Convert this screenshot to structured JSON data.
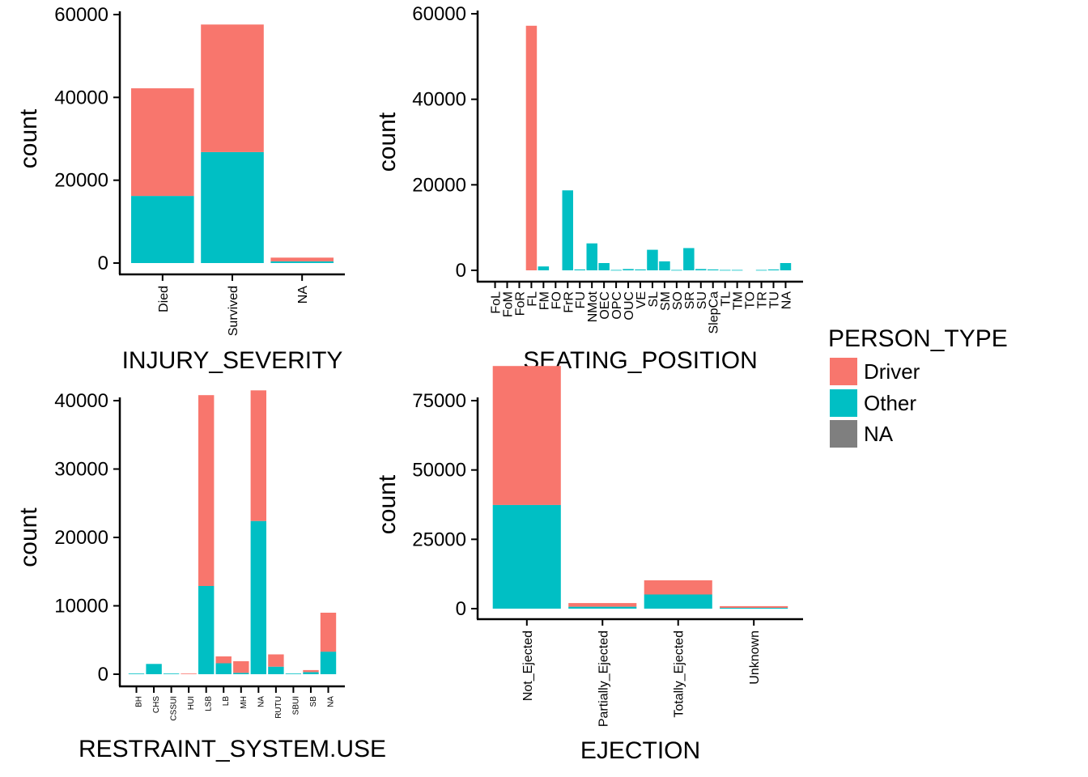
{
  "colors": {
    "Driver": "#F8766D",
    "Other": "#00BFC4",
    "NA": "#7F7F7F"
  },
  "legend": {
    "title": "PERSON_TYPE",
    "entries": [
      {
        "key": "Driver",
        "label": "Driver"
      },
      {
        "key": "Other",
        "label": "Other"
      },
      {
        "key": "NA",
        "label": "NA"
      }
    ]
  },
  "chart_data": [
    {
      "id": "injury",
      "type": "bar",
      "stacked": true,
      "xlabel": "INJURY_SEVERITY",
      "ylabel": "count",
      "ylim": [
        0,
        60000
      ],
      "yticks": [
        0,
        20000,
        40000,
        60000
      ],
      "categories": [
        "Died",
        "Survived",
        "NA"
      ],
      "series": [
        {
          "name": "Other",
          "values": [
            16200,
            26800,
            400
          ]
        },
        {
          "name": "Driver",
          "values": [
            26000,
            30800,
            900
          ]
        }
      ]
    },
    {
      "id": "seating",
      "type": "bar",
      "stacked": true,
      "xlabel": "SEATING_POSITION",
      "ylabel": "count",
      "ylim": [
        0,
        60000
      ],
      "yticks": [
        0,
        20000,
        40000,
        60000
      ],
      "categories": [
        "FoL",
        "FoM",
        "FoR",
        "FL",
        "FM",
        "FO",
        "FrR",
        "FU",
        "NMot",
        "OEC",
        "OPC",
        "OUC",
        "VE",
        "SL",
        "SM",
        "SO",
        "SR",
        "SU",
        "SlepCa",
        "TL",
        "TM",
        "TO",
        "TR",
        "TU",
        "NA"
      ],
      "series": [
        {
          "name": "Other",
          "values": [
            0,
            0,
            0,
            0,
            900,
            0,
            18700,
            200,
            6300,
            1700,
            100,
            300,
            200,
            4800,
            2100,
            100,
            5200,
            300,
            200,
            100,
            100,
            0,
            100,
            200,
            1700
          ]
        },
        {
          "name": "Driver",
          "values": [
            0,
            0,
            0,
            57200,
            0,
            0,
            0,
            0,
            0,
            0,
            0,
            0,
            0,
            0,
            0,
            0,
            0,
            0,
            0,
            0,
            0,
            0,
            0,
            0,
            0
          ]
        }
      ]
    },
    {
      "id": "restraint",
      "type": "bar",
      "stacked": true,
      "xlabel": "RESTRAINT_SYSTEM.USE",
      "ylabel": "count",
      "ylim": [
        0,
        42000
      ],
      "yticks": [
        0,
        10000,
        20000,
        30000,
        40000
      ],
      "categories": [
        "BH",
        "CHS",
        "CSSUI",
        "HUI",
        "LSB",
        "LB",
        "MH",
        "NA",
        "RUTU",
        "SBUI",
        "SB",
        "NA"
      ],
      "series": [
        {
          "name": "Other",
          "values": [
            100,
            1500,
            100,
            0,
            12900,
            1600,
            200,
            22400,
            1100,
            100,
            300,
            3300
          ]
        },
        {
          "name": "Driver",
          "values": [
            0,
            0,
            0,
            100,
            27900,
            1000,
            1700,
            19100,
            1800,
            0,
            300,
            5700
          ]
        }
      ]
    },
    {
      "id": "ejection",
      "type": "bar",
      "stacked": true,
      "xlabel": "EJECTION",
      "ylabel": "count",
      "ylim": [
        0,
        90000
      ],
      "yticks": [
        0,
        25000,
        50000,
        75000
      ],
      "categories": [
        "Not_Ejected",
        "Partially_Ejected",
        "Totally_Ejected",
        "Unknown"
      ],
      "series": [
        {
          "name": "Other",
          "values": [
            37400,
            700,
            5100,
            300
          ]
        },
        {
          "name": "Driver",
          "values": [
            50100,
            1300,
            5100,
            600
          ]
        }
      ]
    }
  ]
}
